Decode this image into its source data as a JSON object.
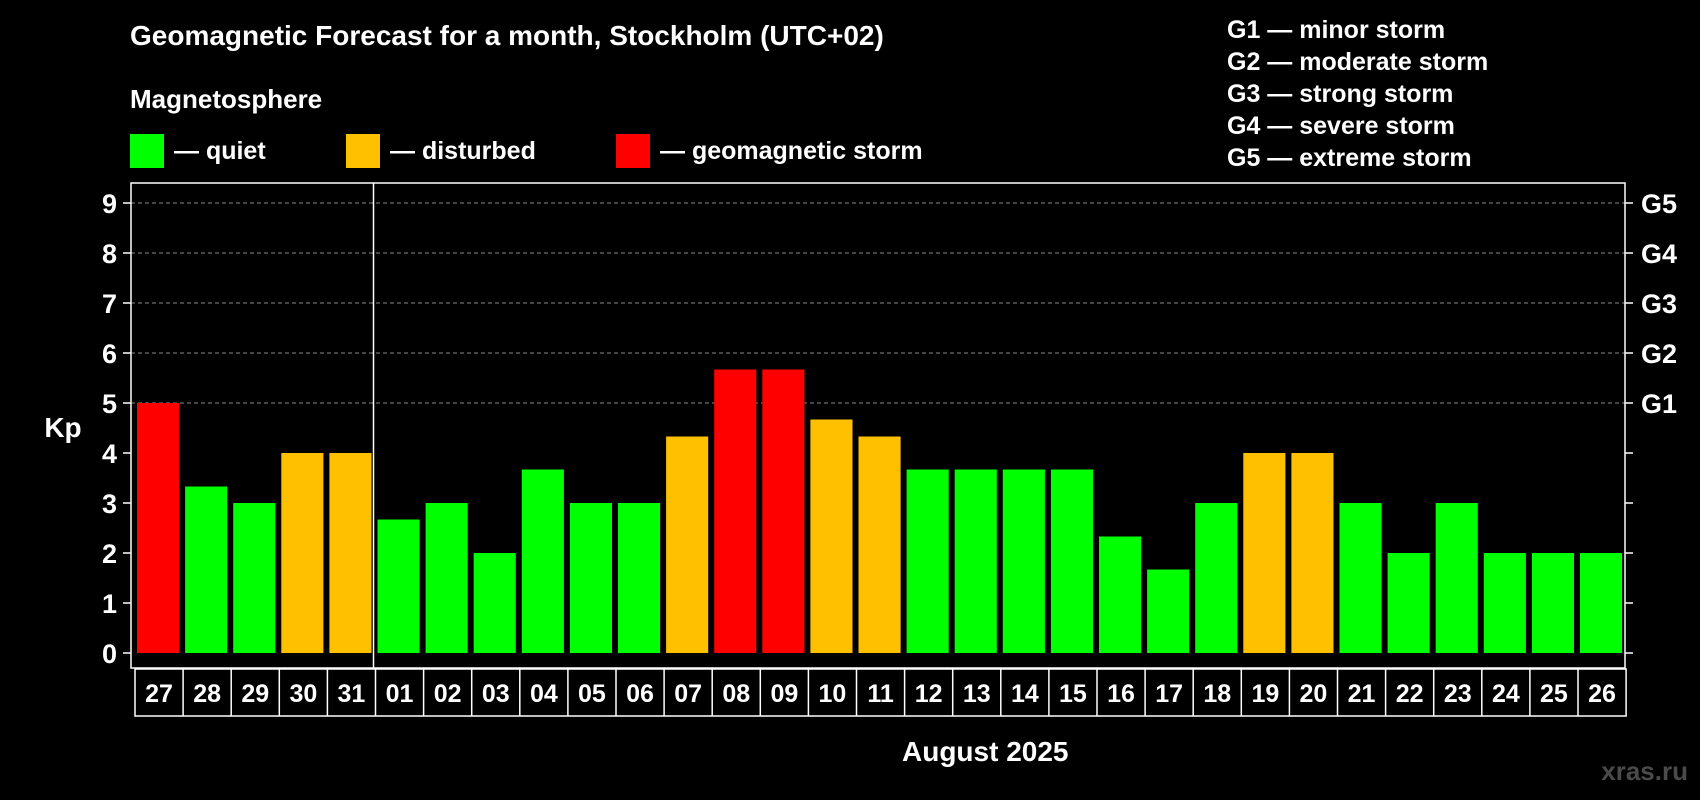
{
  "title": "Geomagnetic Forecast for a month, Stockholm (UTC+02)",
  "magnetosphere_heading": "Magnetosphere",
  "legend": [
    {
      "color": "#00ff00",
      "label": "— quiet"
    },
    {
      "color": "#ffc000",
      "label": "— disturbed"
    },
    {
      "color": "#ff0000",
      "label": "— geomagnetic storm"
    }
  ],
  "g_scale": [
    {
      "level": "G1",
      "text": "G1 — minor storm"
    },
    {
      "level": "G2",
      "text": "G2 — moderate storm"
    },
    {
      "level": "G3",
      "text": "G3 — strong storm"
    },
    {
      "level": "G4",
      "text": "G4 — severe storm"
    },
    {
      "level": "G5",
      "text": "G5 — extreme storm"
    }
  ],
  "month_label": "August 2025",
  "watermark": "xras.ru",
  "chart_data": {
    "type": "bar",
    "title": "Geomagnetic Forecast for a month, Stockholm (UTC+02)",
    "ylabel": "Kp",
    "xlabel": "August 2025",
    "ylim": [
      0,
      9
    ],
    "yticks": [
      0,
      1,
      2,
      3,
      4,
      5,
      6,
      7,
      8,
      9
    ],
    "right_axis_labels": [
      {
        "kp": 5,
        "label": "G1"
      },
      {
        "kp": 6,
        "label": "G2"
      },
      {
        "kp": 7,
        "label": "G3"
      },
      {
        "kp": 8,
        "label": "G4"
      },
      {
        "kp": 9,
        "label": "G5"
      }
    ],
    "grid": "horizontal dashed at Kp 5–9",
    "month_divider_after": "31",
    "categories": [
      "27",
      "28",
      "29",
      "30",
      "31",
      "01",
      "02",
      "03",
      "04",
      "05",
      "06",
      "07",
      "08",
      "09",
      "10",
      "11",
      "12",
      "13",
      "14",
      "15",
      "16",
      "17",
      "18",
      "19",
      "20",
      "21",
      "22",
      "23",
      "24",
      "25",
      "26"
    ],
    "values": [
      5,
      3.33,
      3,
      4,
      4,
      2.67,
      3,
      2,
      3.67,
      3,
      3,
      4.33,
      5.67,
      5.67,
      4.67,
      4.33,
      3.67,
      3.67,
      3.67,
      3.67,
      2.33,
      1.67,
      3,
      4,
      4,
      3,
      2,
      3,
      2,
      2,
      2
    ],
    "status": [
      "storm",
      "quiet",
      "quiet",
      "disturbed",
      "disturbed",
      "quiet",
      "quiet",
      "quiet",
      "quiet",
      "quiet",
      "quiet",
      "disturbed",
      "storm",
      "storm",
      "disturbed",
      "disturbed",
      "quiet",
      "quiet",
      "quiet",
      "quiet",
      "quiet",
      "quiet",
      "quiet",
      "disturbed",
      "disturbed",
      "quiet",
      "quiet",
      "quiet",
      "quiet",
      "quiet",
      "quiet"
    ],
    "status_colors": {
      "quiet": "#00ff00",
      "disturbed": "#ffc000",
      "storm": "#ff0000"
    }
  }
}
